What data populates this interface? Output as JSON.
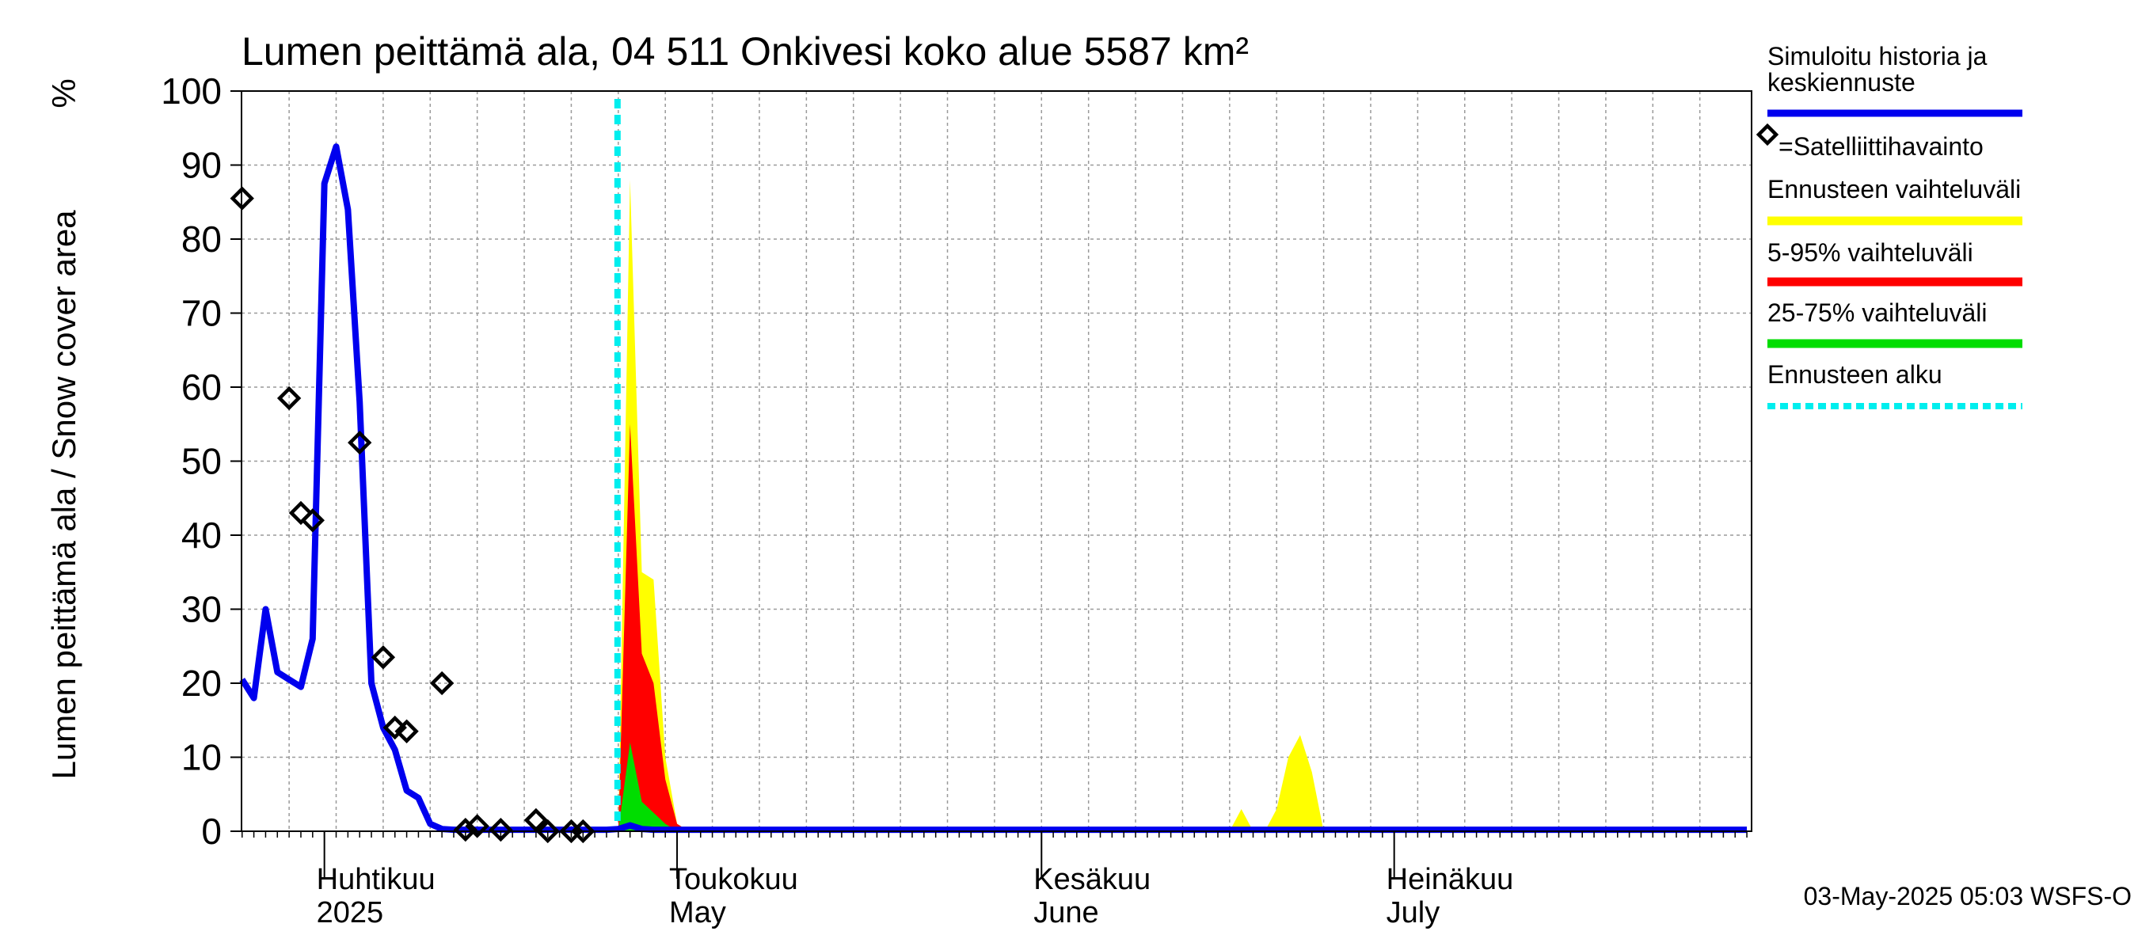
{
  "chart_data": {
    "type": "area",
    "title": "Lumen peittämä ala, 04 511 Onkivesi koko alue 5587 km²",
    "ylabel": "Lumen peittämä ala / Snow cover area",
    "yunit": "%",
    "ylim": [
      0,
      100
    ],
    "yticks": [
      0,
      10,
      20,
      30,
      40,
      50,
      60,
      70,
      80,
      90,
      100
    ],
    "grid": true,
    "x_unit": "day index from 2025-03-25 (day 7 = 1 April)",
    "xlim": [
      0,
      128
    ],
    "month_ticks": [
      7,
      37,
      68,
      98,
      129
    ],
    "month_labels": [
      {
        "day": 7,
        "fi": "Huhtikuu",
        "en": "2025"
      },
      {
        "day": 37,
        "fi": "Toukokuu",
        "en": "May"
      },
      {
        "day": 68,
        "fi": "Kesäkuu",
        "en": "June"
      },
      {
        "day": 98,
        "fi": "Heinäkuu",
        "en": "July"
      }
    ],
    "forecast_start_day": 32,
    "simulated": {
      "x": [
        0,
        1,
        2,
        3,
        4,
        5,
        6,
        7,
        8,
        9,
        10,
        11,
        12,
        13,
        14,
        15,
        16,
        17,
        18,
        19,
        20,
        21,
        22,
        23,
        24,
        25,
        26,
        27,
        28,
        29,
        30,
        31,
        32,
        33,
        34,
        35,
        128
      ],
      "y": [
        20.5,
        18,
        30,
        21.5,
        20.5,
        19.5,
        26,
        87.5,
        92.5,
        84,
        58,
        20,
        14,
        11,
        5.5,
        4.5,
        1,
        0.3,
        0.2,
        0.2,
        0.2,
        0.2,
        0.2,
        0.2,
        0.2,
        0.2,
        0.2,
        0.2,
        0.2,
        0.2,
        0.2,
        0.2,
        0.3,
        0.8,
        0.3,
        0.2,
        0.2
      ]
    },
    "satellite": {
      "x": [
        0,
        4,
        5,
        6,
        10,
        12,
        13,
        14,
        17,
        19,
        20,
        22,
        25,
        26,
        28,
        29
      ],
      "y": [
        85.5,
        58.5,
        43,
        42,
        52.5,
        23.5,
        14,
        13.5,
        20,
        0.2,
        0.7,
        0.2,
        1.5,
        0,
        0,
        0
      ]
    },
    "range_full": {
      "x": [
        32,
        33,
        34,
        35,
        36,
        37,
        38,
        39,
        84,
        85,
        86,
        87,
        88,
        89,
        90,
        91,
        92,
        93
      ],
      "y": [
        0,
        88,
        35,
        34,
        10,
        1,
        0,
        0,
        0,
        3,
        0,
        0,
        3,
        10,
        13,
        8,
        0,
        0
      ]
    },
    "range_5_95": {
      "x": [
        32,
        33,
        34,
        35,
        36,
        37,
        38
      ],
      "y": [
        0,
        55,
        24,
        20,
        7,
        1,
        0
      ]
    },
    "range_25_75": {
      "x": [
        32,
        33,
        34,
        35,
        36,
        37
      ],
      "y": [
        0,
        12,
        4,
        2.5,
        1,
        0
      ]
    },
    "legend": [
      {
        "key": "simulated",
        "label": "Simuloitu historia ja keskiennuste",
        "lines": [
          "Simuloitu historia ja",
          "keskiennuste"
        ],
        "color": "#0000ee",
        "style": "line"
      },
      {
        "key": "satellite",
        "label": "=Satelliittihavainto",
        "color": "#000000",
        "style": "diamond"
      },
      {
        "key": "range_full",
        "label": "Ennusteen vaihteluväli",
        "color": "#ffff00",
        "style": "band"
      },
      {
        "key": "range_5_95",
        "label": "5-95% vaihteluväli",
        "color": "#ff0000",
        "style": "band"
      },
      {
        "key": "range_25_75",
        "label": "25-75% vaihteluväli",
        "color": "#00dd00",
        "style": "band"
      },
      {
        "key": "forecast_start",
        "label": "Ennusteen alku",
        "color": "#00eeee",
        "style": "dashed"
      }
    ],
    "legend_position": "right",
    "footer": "03-May-2025 05:03 WSFS-O"
  }
}
